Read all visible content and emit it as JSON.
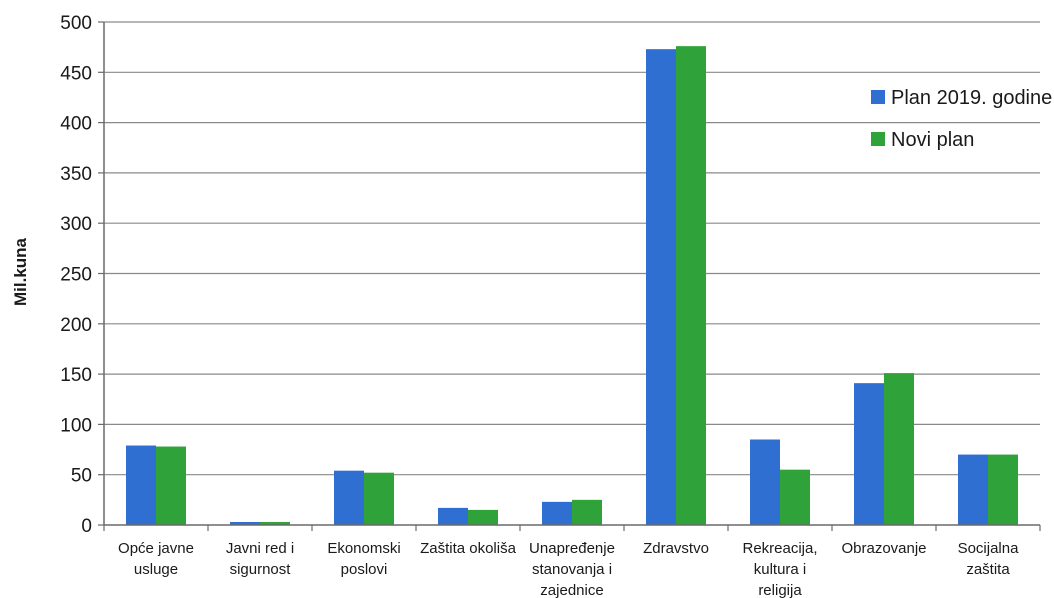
{
  "chart_data": {
    "type": "bar",
    "ylabel": "Mil.kuna",
    "xlabel": "",
    "ylim": [
      0,
      500
    ],
    "y_ticks": [
      "0",
      "50",
      "100",
      "150",
      "200",
      "250",
      "300",
      "350",
      "400",
      "450",
      "500"
    ],
    "grid": true,
    "legend_position": "right",
    "categories": [
      [
        "Opće javne",
        "usluge"
      ],
      [
        "Javni red i",
        "sigurnost"
      ],
      [
        "Ekonomski",
        "poslovi"
      ],
      [
        "Zaštita okoliša"
      ],
      [
        "Unapređenje",
        "stanovanja i",
        "zajednice"
      ],
      [
        "Zdravstvo"
      ],
      [
        "Rekreacija,",
        "kultura i",
        "religija"
      ],
      [
        "Obrazovanje"
      ],
      [
        "Socijalna",
        "zaštita"
      ]
    ],
    "first_category_color": "#2e4f6e",
    "series": [
      {
        "name": "Plan 2019. godine",
        "color": "#2f6fd1",
        "values": [
          79,
          3,
          54,
          17,
          23,
          473,
          85,
          141,
          70
        ]
      },
      {
        "name": "Novi plan",
        "color": "#2fa33a",
        "values": [
          78,
          3,
          52,
          15,
          25,
          476,
          55,
          151,
          70
        ]
      }
    ]
  }
}
